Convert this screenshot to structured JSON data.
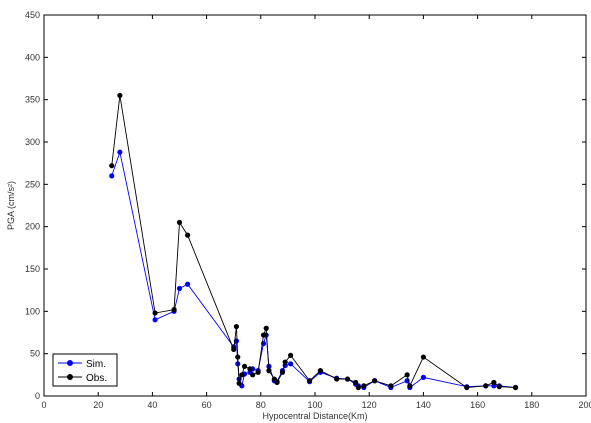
{
  "chart_data": {
    "type": "line",
    "xlabel": "Hypocentral Distance(Km)",
    "ylabel": "PGA (cm/s²)",
    "xlim": [
      0,
      200
    ],
    "ylim": [
      0,
      450
    ],
    "xticks": [
      0,
      20,
      40,
      60,
      80,
      100,
      120,
      140,
      160,
      180,
      200
    ],
    "yticks": [
      0,
      50,
      100,
      150,
      200,
      250,
      300,
      350,
      400,
      450
    ],
    "grid": false,
    "legend_position": "bottom-left",
    "series": [
      {
        "name": "Sim.",
        "color": "#0000ff",
        "x": [
          25,
          28,
          41,
          48,
          50,
          53,
          70,
          71,
          71.5,
          72,
          73,
          74,
          76,
          77,
          79,
          81,
          82,
          83,
          85,
          86,
          88,
          89,
          91,
          98,
          102,
          108,
          112,
          115,
          116,
          118,
          122,
          128,
          134,
          135,
          140,
          156,
          163,
          166,
          168,
          174
        ],
        "y": [
          260,
          288,
          90,
          100,
          127,
          132,
          58,
          65,
          38,
          20,
          12,
          26,
          28,
          32,
          30,
          62,
          72,
          35,
          18,
          17,
          30,
          36,
          38,
          17,
          28,
          21,
          20,
          14,
          12,
          10,
          18,
          10,
          18,
          10,
          22,
          11,
          12,
          12,
          12,
          10
        ]
      },
      {
        "name": "Obs.",
        "color": "#000000",
        "x": [
          25,
          28,
          41,
          48,
          50,
          53,
          70,
          71,
          71.5,
          72,
          73,
          74,
          76,
          77,
          79,
          81,
          82,
          83,
          85,
          86,
          88,
          89,
          91,
          98,
          102,
          108,
          112,
          115,
          116,
          118,
          122,
          128,
          134,
          135,
          140,
          156,
          163,
          166,
          168,
          174
        ],
        "y": [
          272,
          355,
          98,
          102,
          205,
          190,
          55,
          82,
          46,
          15,
          25,
          35,
          32,
          25,
          28,
          72,
          80,
          30,
          20,
          16,
          28,
          40,
          48,
          18,
          30,
          20,
          20,
          16,
          10,
          12,
          18,
          12,
          25,
          12,
          46,
          10,
          12,
          16,
          11,
          10
        ]
      }
    ]
  }
}
